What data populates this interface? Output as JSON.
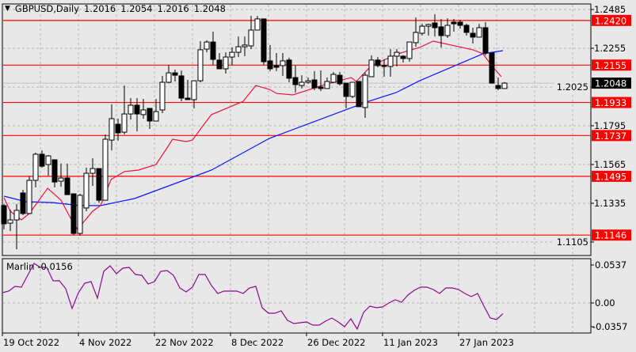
{
  "header": {
    "symbol": "GBPUSD,Daily",
    "open": "1.2016",
    "high": "1.2054",
    "low": "1.2016",
    "close": "1.2048"
  },
  "indicator": {
    "name": "Marlin",
    "value": "-0.0156"
  },
  "colors": {
    "background": "#e8e8e8",
    "level_line": "#ff0000",
    "fast_ma": "#e8143c",
    "slow_ma": "#0a14ff",
    "indicator": "#8b0a8b",
    "grid": "#b4b4b4"
  },
  "chart_data": [
    {
      "type": "candlestick",
      "title": "GBPUSD,Daily",
      "ylim": [
        1.1085,
        1.2495
      ],
      "grid": true,
      "price_ticks": [
        "1.2485",
        "1.2255",
        "1.2025",
        "1.1795",
        "1.1565",
        "1.1335",
        "1.1105"
      ],
      "levels": [
        "1.2420",
        "1.2155",
        "1.1933",
        "1.1737",
        "1.1495",
        "1.1146"
      ],
      "current_price": "1.2048",
      "date_labels": [
        "19 Oct 2022",
        "4 Nov 2022",
        "22 Nov 2022",
        "8 Dec 2022",
        "26 Dec 2022",
        "11 Jan 2023",
        "27 Jan 2023"
      ],
      "date_label_bars": [
        0,
        12,
        24,
        36,
        48,
        60,
        72
      ],
      "ohlc": [
        [
          1.1321,
          1.133,
          1.118,
          1.1213
        ],
        [
          1.1217,
          1.1297,
          1.117,
          1.1236
        ],
        [
          1.1236,
          1.133,
          1.1062,
          1.1293
        ],
        [
          1.1396,
          1.1415,
          1.1264,
          1.1274
        ],
        [
          1.1274,
          1.1494,
          1.1274,
          1.1471
        ],
        [
          1.1471,
          1.1635,
          1.1429,
          1.1626
        ],
        [
          1.1626,
          1.1649,
          1.1546,
          1.1555
        ],
        [
          1.1565,
          1.1621,
          1.1499,
          1.1616
        ],
        [
          1.1593,
          1.1593,
          1.1429,
          1.1461
        ],
        [
          1.1466,
          1.157,
          1.1433,
          1.1485
        ],
        [
          1.1485,
          1.157,
          1.1386,
          1.1386
        ],
        [
          1.1391,
          1.1391,
          1.1147,
          1.1156
        ],
        [
          1.1156,
          1.1391,
          1.1142,
          1.1382
        ],
        [
          1.1307,
          1.1546,
          1.1288,
          1.1513
        ],
        [
          1.1513,
          1.1602,
          1.1438,
          1.1541
        ],
        [
          1.1541,
          1.1541,
          1.1339,
          1.1353
        ],
        [
          1.1353,
          1.1743,
          1.1353,
          1.1715
        ],
        [
          1.171,
          1.1922,
          1.1649,
          1.1837
        ],
        [
          1.1804,
          1.1837,
          1.1706,
          1.1753
        ],
        [
          1.1757,
          1.2034,
          1.1743,
          1.1865
        ],
        [
          1.1865,
          1.1959,
          1.1832,
          1.1917
        ],
        [
          1.1917,
          1.1959,
          1.1762,
          1.1865
        ],
        [
          1.1861,
          1.1954,
          1.1837,
          1.1889
        ],
        [
          1.1898,
          1.1898,
          1.1776,
          1.1823
        ],
        [
          1.1823,
          1.1954,
          1.1823,
          1.1879
        ],
        [
          1.1889,
          1.2091,
          1.187,
          1.2053
        ],
        [
          1.2053,
          1.2156,
          1.2048,
          1.2109
        ],
        [
          1.2109,
          1.2128,
          1.2058,
          1.2095
        ],
        [
          1.2091,
          1.2123,
          1.194,
          1.1959
        ],
        [
          1.1959,
          1.2067,
          1.195,
          1.195
        ],
        [
          1.195,
          1.2062,
          1.1898,
          1.2062
        ],
        [
          1.2062,
          1.2297,
          1.2053,
          1.2246
        ],
        [
          1.225,
          1.2302,
          1.2231,
          1.2292
        ],
        [
          1.2292,
          1.2354,
          1.2156,
          1.2189
        ],
        [
          1.2185,
          1.2227,
          1.2133,
          1.2133
        ],
        [
          1.2133,
          1.2231,
          1.2105,
          1.2203
        ],
        [
          1.2203,
          1.226,
          1.2156,
          1.2231
        ],
        [
          1.2231,
          1.2325,
          1.2203,
          1.2264
        ],
        [
          1.2264,
          1.2325,
          1.2208,
          1.2274
        ],
        [
          1.2269,
          1.2447,
          1.225,
          1.2363
        ],
        [
          1.2363,
          1.2447,
          1.2363,
          1.2429
        ],
        [
          1.2429,
          1.2429,
          1.2156,
          1.2175
        ],
        [
          1.218,
          1.2274,
          1.2119,
          1.2133
        ],
        [
          1.2152,
          1.2227,
          1.2119,
          1.2142
        ],
        [
          1.2152,
          1.2227,
          1.2091,
          1.218
        ],
        [
          1.2185,
          1.2199,
          1.2053,
          1.2077
        ],
        [
          1.2081,
          1.2152,
          1.1992,
          1.2039
        ],
        [
          1.2034,
          1.2095,
          1.2016,
          1.2053
        ],
        [
          1.2053,
          1.2081,
          1.2044,
          1.2062
        ],
        [
          1.2067,
          1.2119,
          1.2006,
          1.202
        ],
        [
          1.2025,
          1.2123,
          1.2001,
          1.2016
        ],
        [
          1.2016,
          1.2081,
          1.2016,
          1.2058
        ],
        [
          1.2053,
          1.2114,
          1.2048,
          1.21
        ],
        [
          1.2095,
          1.2114,
          1.2034,
          1.2044
        ],
        [
          1.2048,
          1.2048,
          1.1898,
          1.1969
        ],
        [
          1.1969,
          1.2053,
          1.1959,
          1.2053
        ],
        [
          1.2058,
          1.2058,
          1.1908,
          1.1908
        ],
        [
          1.1903,
          1.2109,
          1.1842,
          1.2095
        ],
        [
          1.2086,
          1.2213,
          1.2086,
          1.2185
        ],
        [
          1.2185,
          1.2203,
          1.2142,
          1.2152
        ],
        [
          1.2152,
          1.2189,
          1.2086,
          1.2147
        ],
        [
          1.2147,
          1.225,
          1.2086,
          1.2208
        ],
        [
          1.2208,
          1.225,
          1.2147,
          1.2231
        ],
        [
          1.2208,
          1.2213,
          1.217,
          1.2194
        ],
        [
          1.2194,
          1.2292,
          1.2175,
          1.2292
        ],
        [
          1.2288,
          1.2438,
          1.2264,
          1.2349
        ],
        [
          1.2344,
          1.24,
          1.233,
          1.2386
        ],
        [
          1.2386,
          1.24,
          1.233,
          1.2396
        ],
        [
          1.2405,
          1.2457,
          1.2325,
          1.2377
        ],
        [
          1.2382,
          1.2429,
          1.226,
          1.233
        ],
        [
          1.233,
          1.2433,
          1.2316,
          1.2391
        ],
        [
          1.241,
          1.2429,
          1.2354,
          1.24
        ],
        [
          1.241,
          1.2424,
          1.2372,
          1.2391
        ],
        [
          1.2391,
          1.24,
          1.233,
          1.2349
        ],
        [
          1.2344,
          1.2377,
          1.2283,
          1.2321
        ],
        [
          1.2321,
          1.24,
          1.2321,
          1.2377
        ],
        [
          1.2377,
          1.241,
          1.2213,
          1.2227
        ],
        [
          1.2227,
          1.2227,
          1.2044,
          1.2048
        ],
        [
          1.2034,
          1.2081,
          1.2006,
          1.2016
        ],
        [
          1.2016,
          1.2054,
          1.2016,
          1.2048
        ]
      ],
      "fast_ma": [
        [
          0,
          1.1368
        ],
        [
          1,
          1.1288
        ],
        [
          2.75,
          1.1236
        ],
        [
          4,
          1.1274
        ],
        [
          6.9,
          1.1424
        ],
        [
          9,
          1.1353
        ],
        [
          10.6,
          1.1241
        ],
        [
          11.6,
          1.118
        ],
        [
          14,
          1.1288
        ],
        [
          15.25,
          1.1321
        ],
        [
          16.9,
          1.1476
        ],
        [
          19,
          1.1523
        ],
        [
          21.25,
          1.1532
        ],
        [
          24,
          1.1565
        ],
        [
          25.9,
          1.1673
        ],
        [
          26.6,
          1.1715
        ],
        [
          28.75,
          1.1701
        ],
        [
          29.75,
          1.171
        ],
        [
          31.5,
          1.18
        ],
        [
          32.75,
          1.1861
        ],
        [
          37.75,
          1.194
        ],
        [
          39.75,
          1.2034
        ],
        [
          41.9,
          1.2011
        ],
        [
          43,
          1.1987
        ],
        [
          45.6,
          1.1978
        ],
        [
          50.6,
          1.2039
        ],
        [
          54.8,
          1.2081
        ],
        [
          55.6,
          1.2058
        ],
        [
          58,
          1.2152
        ],
        [
          62.2,
          1.2222
        ],
        [
          65.6,
          1.226
        ],
        [
          67.75,
          1.2297
        ],
        [
          74,
          1.2246
        ],
        [
          75.6,
          1.2222
        ],
        [
          76.9,
          1.2156
        ],
        [
          78.5,
          1.2086
        ]
      ],
      "slow_ma": [
        [
          0,
          1.1377
        ],
        [
          3.5,
          1.1344
        ],
        [
          7.75,
          1.1339
        ],
        [
          11.9,
          1.1321
        ],
        [
          15.25,
          1.1321
        ],
        [
          20.6,
          1.1363
        ],
        [
          32.75,
          1.1532
        ],
        [
          41.9,
          1.172
        ],
        [
          57.25,
          1.1936
        ],
        [
          61.9,
          1.1992
        ],
        [
          65.6,
          1.2062
        ],
        [
          75.6,
          1.2222
        ],
        [
          78.75,
          1.2241
        ]
      ]
    },
    {
      "type": "line",
      "title": "Marlin",
      "ylim": [
        -0.0357,
        0.0537
      ],
      "ticks": [
        "0.0537",
        "0.00",
        "-0.0357"
      ],
      "values": [
        0.015,
        0.0173,
        0.0242,
        0.023,
        0.0403,
        0.0575,
        0.0518,
        0.0518,
        0.0322,
        0.0322,
        0.0207,
        -0.0081,
        0.015,
        0.0288,
        0.0311,
        0.0069,
        0.046,
        0.0541,
        0.0426,
        0.0506,
        0.0518,
        0.0414,
        0.0403,
        0.0276,
        0.0311,
        0.046,
        0.0472,
        0.0403,
        0.0219,
        0.0161,
        0.023,
        0.0414,
        0.0414,
        0.0253,
        0.0138,
        0.0173,
        0.0173,
        0.0173,
        0.0138,
        0.0219,
        0.0242,
        -0.0069,
        -0.015,
        -0.015,
        -0.0115,
        -0.0253,
        -0.0299,
        -0.0288,
        -0.0276,
        -0.0322,
        -0.0322,
        -0.0265,
        -0.0219,
        -0.0276,
        -0.0345,
        -0.023,
        -0.038,
        -0.0138,
        -0.0046,
        -0.0069,
        -0.0058,
        0.0,
        0.0046,
        0.0012,
        0.0115,
        0.0184,
        0.023,
        0.023,
        0.0196,
        0.0138,
        0.0219,
        0.0219,
        0.0196,
        0.0138,
        0.0092,
        0.0138,
        -0.0046,
        -0.0219,
        -0.0242,
        -0.0156
      ]
    }
  ]
}
